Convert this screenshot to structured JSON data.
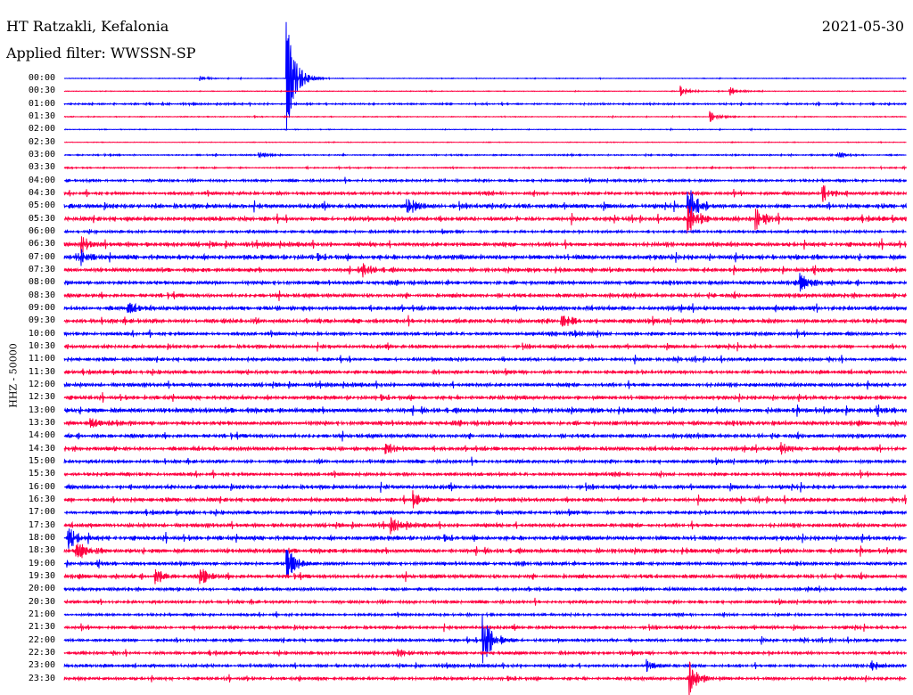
{
  "header": {
    "station": "HT Ratzakli, Kefalonia",
    "filter": "Applied filter: WWSSN-SP",
    "date": "2021-05-30"
  },
  "chart_data": {
    "type": "line",
    "title": "HT Ratzakli, Kefalonia",
    "subtitle": "Applied filter: WWSSN-SP",
    "date": "2021-05-30",
    "ylabel": "HHZ - 50000",
    "minutes_per_row": 30,
    "row_labels": [
      "00:00",
      "00:30",
      "01:00",
      "01:30",
      "02:00",
      "02:30",
      "03:00",
      "03:30",
      "04:00",
      "04:30",
      "05:00",
      "05:30",
      "06:00",
      "06:30",
      "07:00",
      "07:30",
      "08:00",
      "08:30",
      "09:00",
      "09:30",
      "10:00",
      "10:30",
      "11:00",
      "11:30",
      "12:00",
      "12:30",
      "13:00",
      "13:30",
      "14:00",
      "14:30",
      "15:00",
      "15:30",
      "16:00",
      "16:30",
      "17:00",
      "17:30",
      "18:00",
      "18:30",
      "19:00",
      "19:30",
      "20:00",
      "20:30",
      "21:00",
      "21:30",
      "22:00",
      "22:30",
      "23:00",
      "23:30"
    ],
    "row_noise": [
      0.3,
      0.3,
      0.8,
      0.4,
      0.3,
      0.3,
      0.6,
      0.6,
      1.2,
      1.5,
      2,
      2,
      1.2,
      2,
      2.2,
      1.8,
      1.8,
      1.8,
      2,
      2,
      1.6,
      1.6,
      1.6,
      1.6,
      1.8,
      1.8,
      2.2,
      2,
      1.8,
      1.8,
      1.6,
      1.6,
      1.8,
      1.8,
      1.6,
      1.8,
      2,
      2,
      1.6,
      1.8,
      1.4,
      1.4,
      1.2,
      1.4,
      1.4,
      1.4,
      1.4,
      1.4
    ],
    "series_colors": [
      "#0000ff",
      "#ff0040"
    ],
    "events": [
      {
        "row": 0,
        "minute": 7.9,
        "amp": 75
      },
      {
        "row": 0,
        "minute": 4.8,
        "amp": 3
      },
      {
        "row": 1,
        "minute": 21.9,
        "amp": 8
      },
      {
        "row": 1,
        "minute": 23.7,
        "amp": 6
      },
      {
        "row": 3,
        "minute": 23,
        "amp": 6
      },
      {
        "row": 6,
        "minute": 6.9,
        "amp": 4
      },
      {
        "row": 6,
        "minute": 27.5,
        "amp": 5
      },
      {
        "row": 9,
        "minute": 27,
        "amp": 12
      },
      {
        "row": 10,
        "minute": 12.2,
        "amp": 12
      },
      {
        "row": 10,
        "minute": 22.2,
        "amp": 28
      },
      {
        "row": 11,
        "minute": 22.2,
        "amp": 22
      },
      {
        "row": 11,
        "minute": 24.6,
        "amp": 14
      },
      {
        "row": 13,
        "minute": 0.6,
        "amp": 8
      },
      {
        "row": 14,
        "minute": 0.4,
        "amp": 14
      },
      {
        "row": 15,
        "minute": 10.6,
        "amp": 9
      },
      {
        "row": 16,
        "minute": 26.2,
        "amp": 12
      },
      {
        "row": 18,
        "minute": 2.2,
        "amp": 6
      },
      {
        "row": 19,
        "minute": 17.7,
        "amp": 8
      },
      {
        "row": 20,
        "minute": 18,
        "amp": 7
      },
      {
        "row": 27,
        "minute": 0.9,
        "amp": 6
      },
      {
        "row": 29,
        "minute": 11.4,
        "amp": 9
      },
      {
        "row": 29,
        "minute": 25.5,
        "amp": 7
      },
      {
        "row": 33,
        "minute": 12.4,
        "amp": 9
      },
      {
        "row": 35,
        "minute": 11.6,
        "amp": 10
      },
      {
        "row": 36,
        "minute": 0.1,
        "amp": 14
      },
      {
        "row": 37,
        "minute": 0.4,
        "amp": 14
      },
      {
        "row": 38,
        "minute": 7.9,
        "amp": 22
      },
      {
        "row": 39,
        "minute": 3.2,
        "amp": 9
      },
      {
        "row": 39,
        "minute": 4.8,
        "amp": 12
      },
      {
        "row": 44,
        "minute": 14.9,
        "amp": 40
      },
      {
        "row": 45,
        "minute": 11.8,
        "amp": 6
      },
      {
        "row": 46,
        "minute": 20.7,
        "amp": 8
      },
      {
        "row": 46,
        "minute": 28.7,
        "amp": 7
      },
      {
        "row": 47,
        "minute": 22.2,
        "amp": 26
      }
    ]
  }
}
